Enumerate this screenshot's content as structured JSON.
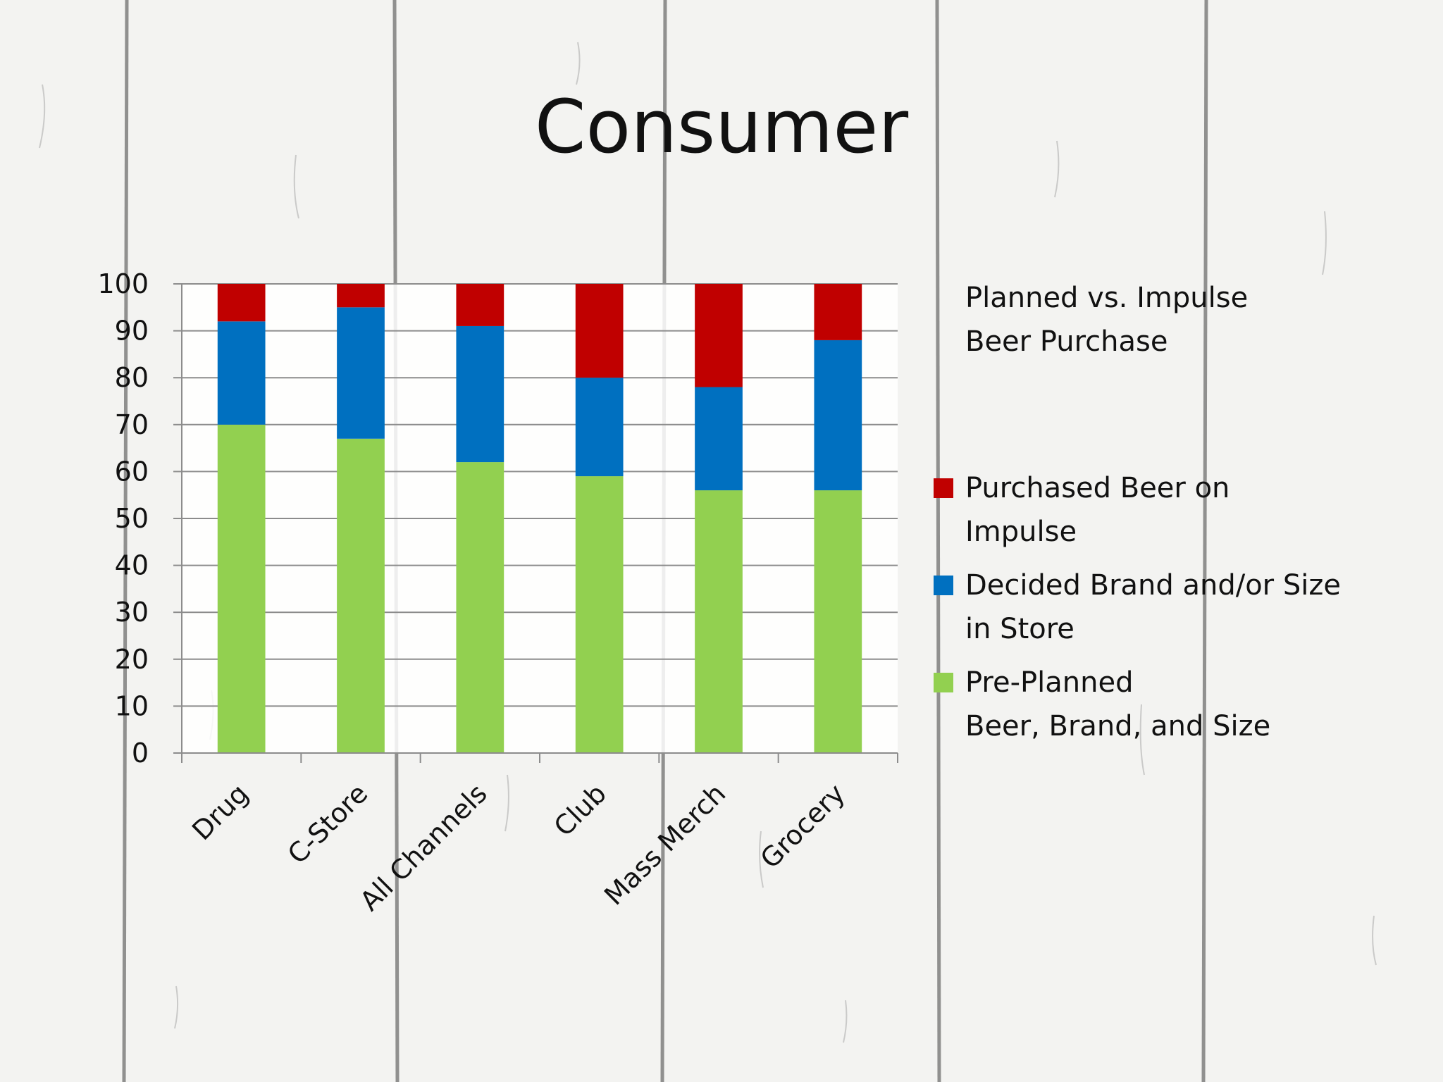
{
  "slide": {
    "title": "Consumer"
  },
  "chart_data": {
    "type": "bar",
    "stacked": true,
    "categories": [
      "Drug",
      "C-Store",
      "All Channels",
      "Club",
      "Mass Merch",
      "Grocery"
    ],
    "series": [
      {
        "name": "Pre-Planned\nBeer, Brand, and Size",
        "color": "#92d050",
        "values": [
          70,
          67,
          62,
          59,
          56,
          56
        ]
      },
      {
        "name": "Decided Brand and/or Size\nin Store",
        "color": "#0070c0",
        "values": [
          22,
          28,
          29,
          21,
          22,
          32
        ]
      },
      {
        "name": "Purchased Beer on\nImpulse",
        "color": "#c00000",
        "values": [
          8,
          5,
          9,
          20,
          22,
          12
        ]
      }
    ],
    "legend_title": "Planned vs. Impulse\nBeer Purchase",
    "ylim": [
      0,
      100
    ],
    "yticks": [
      0,
      10,
      20,
      30,
      40,
      50,
      60,
      70,
      80,
      90,
      100
    ],
    "grid": true,
    "legend_position": "right"
  }
}
